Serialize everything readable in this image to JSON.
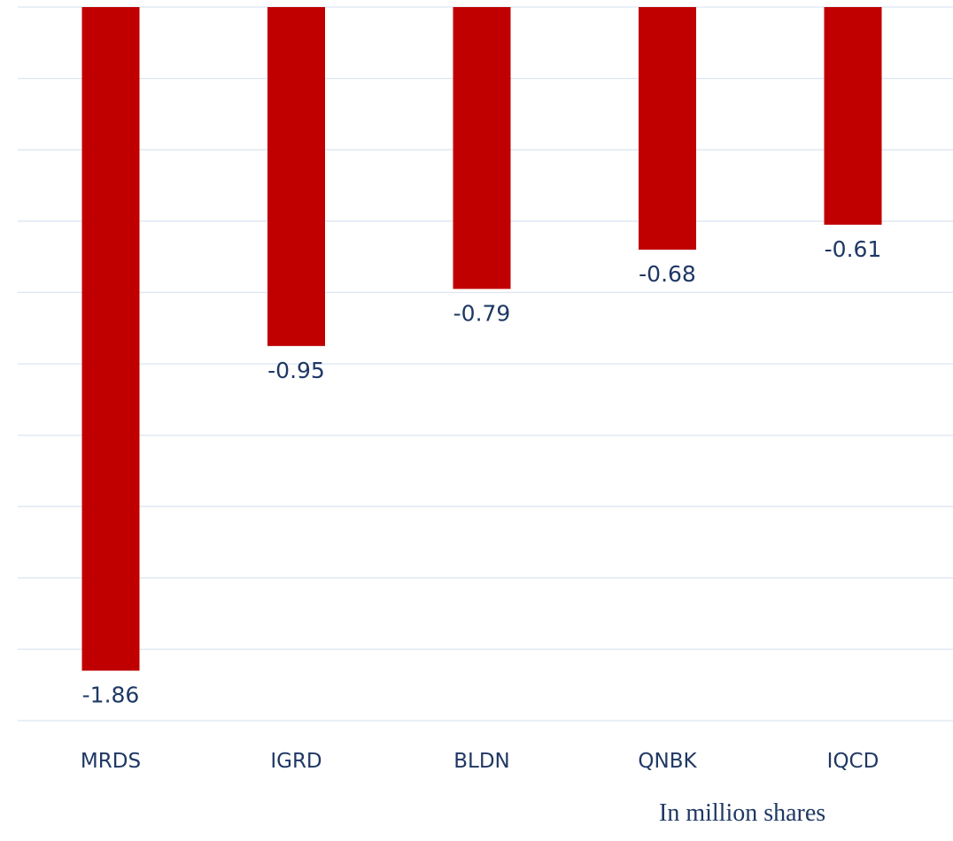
{
  "chart_data": {
    "type": "bar",
    "categories": [
      "MRDS",
      "IGRD",
      "BLDN",
      "QNBK",
      "IQCD"
    ],
    "series": [
      {
        "values": [
          -1.86,
          -0.95,
          -0.79,
          -0.68,
          -0.61
        ],
        "data_labels": [
          "-1.86",
          "-0.95",
          "-0.79",
          "-0.68",
          "-0.61"
        ]
      }
    ],
    "ylim": [
      -2.0,
      0
    ],
    "grid": true,
    "bar_color": "#c00000",
    "gridline_color": "#dce6f2",
    "label_color": "#1f3864",
    "unit_note": "In million shares"
  }
}
